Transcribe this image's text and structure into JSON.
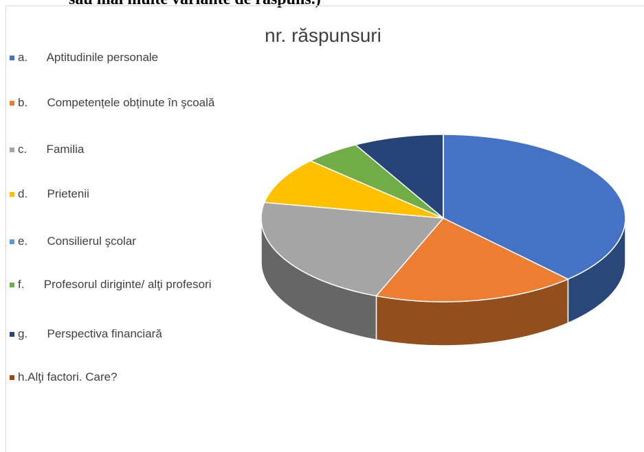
{
  "heading_fragment": "sau mai multe variante de răspuns.)",
  "chart_data": {
    "type": "pie3d",
    "title": "nr. răspunsuri",
    "categories": [
      "a.      Aptitudinile personale",
      "b.      Competențele obținute în şcoală",
      "c.      Familia",
      "d.      Prietenii",
      "e.      Consilierul şcolar",
      "f.      Profesorul diriginte/ alţi profesori",
      "g.      Perspectiva financiară",
      "h.Alţi factori. Care?"
    ],
    "values": [
      38,
      18,
      22,
      9,
      0,
      5,
      8,
      0
    ],
    "colors": [
      "#4472c4",
      "#ed7d31",
      "#a5a5a5",
      "#ffc000",
      "#5b9bd5",
      "#70ad47",
      "#264478",
      "#9e480e"
    ],
    "legend": "left"
  }
}
